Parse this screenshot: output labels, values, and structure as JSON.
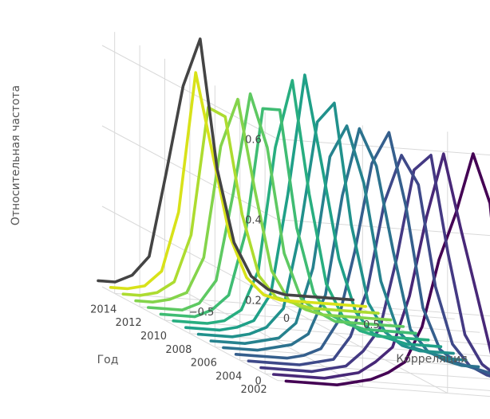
{
  "chart_data": {
    "type": "line3d",
    "title": "",
    "axes": {
      "x": {
        "label": "Корреляция",
        "ticks": [
          -0.5,
          0,
          0.5
        ],
        "tick_labels": [
          "−0.5",
          "0",
          "0.5"
        ],
        "range": [
          -1,
          1
        ]
      },
      "y": {
        "label": "Год",
        "ticks": [
          2002,
          2004,
          2006,
          2008,
          2010,
          2012,
          2014
        ],
        "range": [
          2001,
          2015
        ]
      },
      "z": {
        "label": "Относительная частота",
        "ticks": [
          0,
          0.2,
          0.4,
          0.6
        ],
        "tick_labels": [
          "0",
          "0.2",
          "0.4",
          "0.6"
        ],
        "range": [
          0,
          0.65
        ]
      }
    },
    "x": [
      -0.95,
      -0.85,
      -0.75,
      -0.65,
      -0.55,
      -0.45,
      -0.35,
      -0.25,
      -0.15,
      -0.05,
      0.05,
      0.15,
      0.25,
      0.35,
      0.45,
      0.55
    ],
    "series": [
      {
        "year": 2001,
        "color": "#440154",
        "values": [
          0,
          0,
          0,
          0,
          0.01,
          0.02,
          0.04,
          0.07,
          0.16,
          0.33,
          0.45,
          0.6,
          0.48,
          0.05,
          0.02,
          0.04
        ]
      },
      {
        "year": 2002,
        "color": "#482878",
        "values": [
          0,
          0,
          0,
          0,
          0.01,
          0.02,
          0.05,
          0.09,
          0.22,
          0.42,
          0.58,
          0.4,
          0.23,
          0.06,
          0.02,
          0.01
        ]
      },
      {
        "year": 2003,
        "color": "#443983",
        "values": [
          0,
          0,
          0,
          0,
          0.01,
          0.02,
          0.06,
          0.12,
          0.3,
          0.52,
          0.56,
          0.32,
          0.12,
          0.05,
          0.02,
          0.01
        ]
      },
      {
        "year": 2004,
        "color": "#3e4989",
        "values": [
          0,
          0,
          0,
          0,
          0.01,
          0.02,
          0.08,
          0.2,
          0.42,
          0.54,
          0.47,
          0.22,
          0.08,
          0.03,
          0.01,
          0
        ]
      },
      {
        "year": 2005,
        "color": "#355f8d",
        "values": [
          0,
          0,
          0,
          0,
          0.01,
          0.03,
          0.1,
          0.28,
          0.5,
          0.58,
          0.4,
          0.15,
          0.05,
          0.02,
          0.01,
          0
        ]
      },
      {
        "year": 2006,
        "color": "#2c728e",
        "values": [
          0,
          0,
          0,
          0.01,
          0.02,
          0.05,
          0.15,
          0.4,
          0.57,
          0.48,
          0.27,
          0.08,
          0.03,
          0.01,
          0,
          0
        ]
      },
      {
        "year": 2007,
        "color": "#26828e",
        "values": [
          0,
          0,
          0,
          0.01,
          0.02,
          0.06,
          0.2,
          0.48,
          0.56,
          0.42,
          0.18,
          0.06,
          0.02,
          0.01,
          0,
          0
        ]
      },
      {
        "year": 2008,
        "color": "#21918c",
        "values": [
          0,
          0,
          0,
          0.01,
          0.03,
          0.08,
          0.28,
          0.55,
          0.6,
          0.3,
          0.11,
          0.04,
          0.01,
          0,
          0,
          0
        ]
      },
      {
        "year": 2009,
        "color": "#1fa088",
        "values": [
          0,
          0,
          0,
          0.01,
          0.03,
          0.1,
          0.35,
          0.65,
          0.43,
          0.2,
          0.07,
          0.02,
          0.01,
          0,
          0,
          0
        ]
      },
      {
        "year": 2010,
        "color": "#28ae80",
        "values": [
          0,
          0,
          0,
          0.01,
          0.04,
          0.14,
          0.45,
          0.62,
          0.34,
          0.12,
          0.04,
          0.01,
          0,
          0,
          0,
          0
        ]
      },
      {
        "year": 2011,
        "color": "#3fbc73",
        "values": [
          0,
          0,
          0,
          0.02,
          0.06,
          0.22,
          0.53,
          0.53,
          0.24,
          0.08,
          0.03,
          0.01,
          0,
          0,
          0,
          0
        ]
      },
      {
        "year": 2012,
        "color": "#5ec962",
        "values": [
          0,
          0,
          0,
          0.02,
          0.08,
          0.3,
          0.55,
          0.42,
          0.16,
          0.05,
          0.02,
          0,
          0,
          0,
          0,
          0
        ]
      },
      {
        "year": 2013,
        "color": "#84d44b",
        "values": [
          0,
          0,
          0.01,
          0.03,
          0.12,
          0.4,
          0.52,
          0.3,
          0.1,
          0.03,
          0.01,
          0,
          0,
          0,
          0,
          0
        ]
      },
      {
        "year": 2014,
        "color": "#addc30",
        "values": [
          0,
          0,
          0.01,
          0.04,
          0.16,
          0.48,
          0.46,
          0.22,
          0.07,
          0.02,
          0.01,
          0,
          0,
          0,
          0,
          0
        ]
      },
      {
        "year": 2015,
        "color": "#d8e219",
        "values": [
          0,
          0,
          0.01,
          0.05,
          0.2,
          0.55,
          0.35,
          0.15,
          0.05,
          0.01,
          0,
          0,
          0,
          0,
          0,
          0
        ]
      },
      {
        "year": 2016,
        "color": "#444444",
        "values": [
          0,
          0,
          0.02,
          0.07,
          0.28,
          0.5,
          0.62,
          0.3,
          0.12,
          0.04,
          0.01,
          0,
          0,
          0,
          0,
          0
        ]
      }
    ],
    "grid": true,
    "legend": "none",
    "colormap": "viridis"
  }
}
